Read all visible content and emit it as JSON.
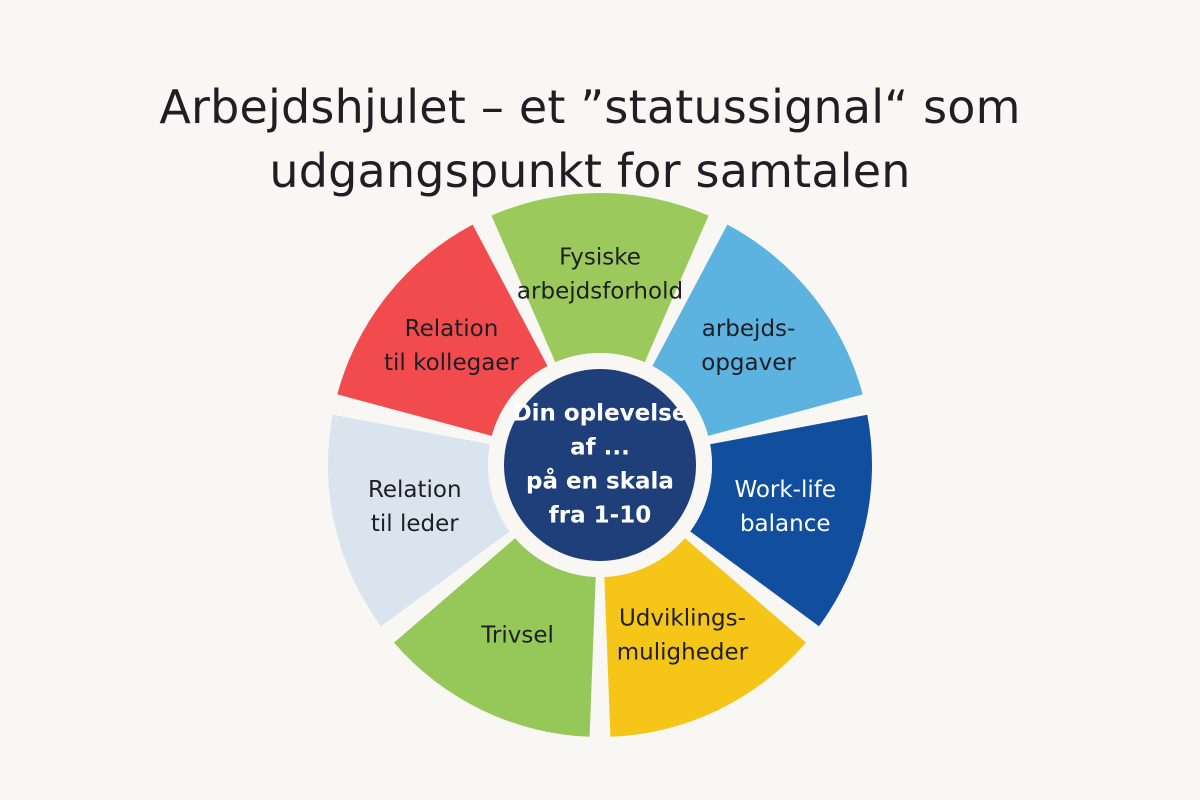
{
  "title": {
    "line1": "Arbejdshjulet – et ”statussignal“ som",
    "line2": "udgangspunkt for samtalen"
  },
  "center": {
    "lines": [
      "Din oplevelse",
      "af ...",
      "på en skala",
      "fra 1-10"
    ],
    "color": "#1f3f7a",
    "text_color": "#ffffff"
  },
  "segments": [
    {
      "lines": [
        "Fysiske",
        "arbejdsforhold"
      ],
      "color": "#9bc95c",
      "text_color": "#1e1e24"
    },
    {
      "lines": [
        "arbejds-",
        "opgaver"
      ],
      "color": "#5db3df",
      "text_color": "#1e1e24"
    },
    {
      "lines": [
        "Work-life",
        "balance"
      ],
      "color": "#114f9e",
      "text_color": "#ffffff"
    },
    {
      "lines": [
        "Udviklings-",
        "muligheder"
      ],
      "color": "#f5c518",
      "text_color": "#1e1e24"
    },
    {
      "lines": [
        "Trivsel"
      ],
      "color": "#95c859",
      "text_color": "#1e1e24"
    },
    {
      "lines": [
        "Relation",
        "til leder"
      ],
      "color": "#d9e4ef",
      "text_color": "#1e1e24"
    },
    {
      "lines": [
        "Relation",
        "til kollegaer"
      ],
      "color": "#f24b4e",
      "text_color": "#1e1e24"
    }
  ]
}
